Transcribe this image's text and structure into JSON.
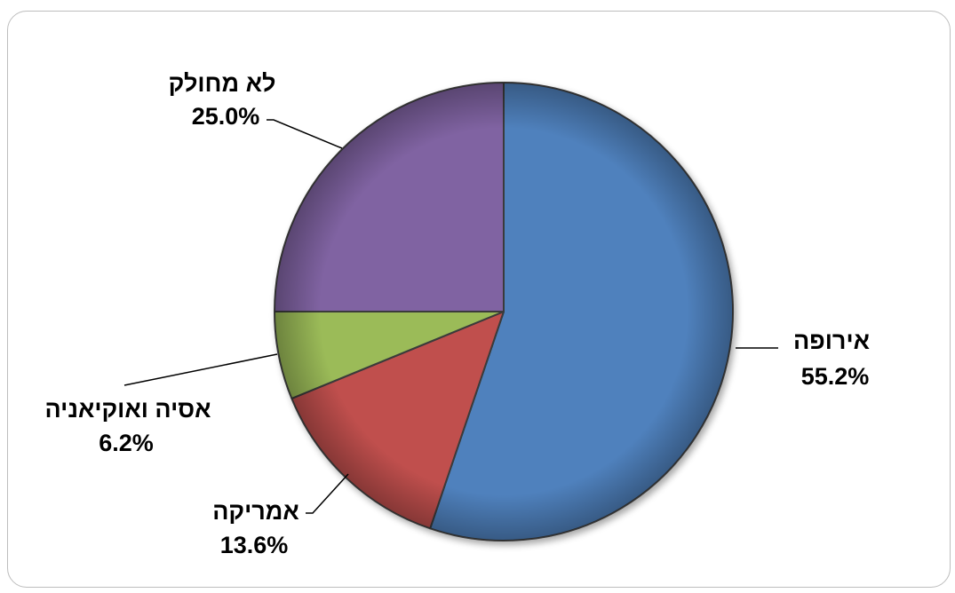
{
  "chart_data": {
    "type": "pie",
    "title": "",
    "slices": [
      {
        "label": "אירופה",
        "value": 55.2,
        "value_label": "55.2%",
        "color": "#4f81bd"
      },
      {
        "label": "אמריקה",
        "value": 13.6,
        "value_label": "13.6%",
        "color": "#c0504d"
      },
      {
        "label": "אסיה ואוקיאניה",
        "value": 6.2,
        "value_label": "6.2%",
        "color": "#9bbb59"
      },
      {
        "label": "לא מחולק",
        "value": 25.0,
        "value_label": "25.0%",
        "color": "#8064a2"
      }
    ],
    "start_angle_deg": 0,
    "direction": "clockwise",
    "legend": "none",
    "data_labels": "outside-with-leader-lines"
  }
}
